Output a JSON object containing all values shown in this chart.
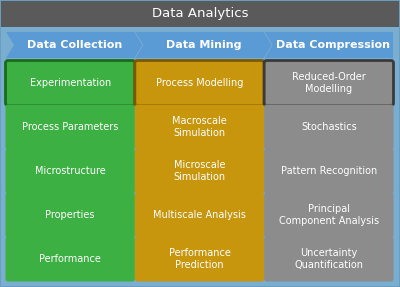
{
  "title": "Data Analytics",
  "title_bg": "#5a5a5a",
  "title_color": "white",
  "outer_bg": "#a8c8e0",
  "inner_bg": "#7aaed0",
  "col_header_bg": "#5b9bd5",
  "col_header_text": "white",
  "col_headers": [
    "Data Collection",
    "Data Mining",
    "Data Compression"
  ],
  "green": "#3cb043",
  "gold": "#c8960c",
  "gray_cell": "#8c8c8c",
  "cell_text": "white",
  "green_border": "#1a6b1a",
  "gold_border": "#7a5800",
  "gray_border": "#3a3a3a",
  "cells": [
    [
      "Experimentation",
      "Process Parameters",
      "Microstructure",
      "Properties",
      "Performance"
    ],
    [
      "Process Modelling",
      "Macroscale\nSimulation",
      "Microscale\nSimulation",
      "Multiscale Analysis",
      "Performance\nPrediction"
    ],
    [
      "Reduced-Order\nModelling",
      "Stochastics",
      "Pattern Recognition",
      "Principal\nComponent Analysis",
      "Uncertainty\nQuantification"
    ]
  ],
  "cell_has_border": [
    true,
    false,
    false,
    false,
    false
  ],
  "figsize": [
    4.0,
    2.87
  ],
  "dpi": 100
}
